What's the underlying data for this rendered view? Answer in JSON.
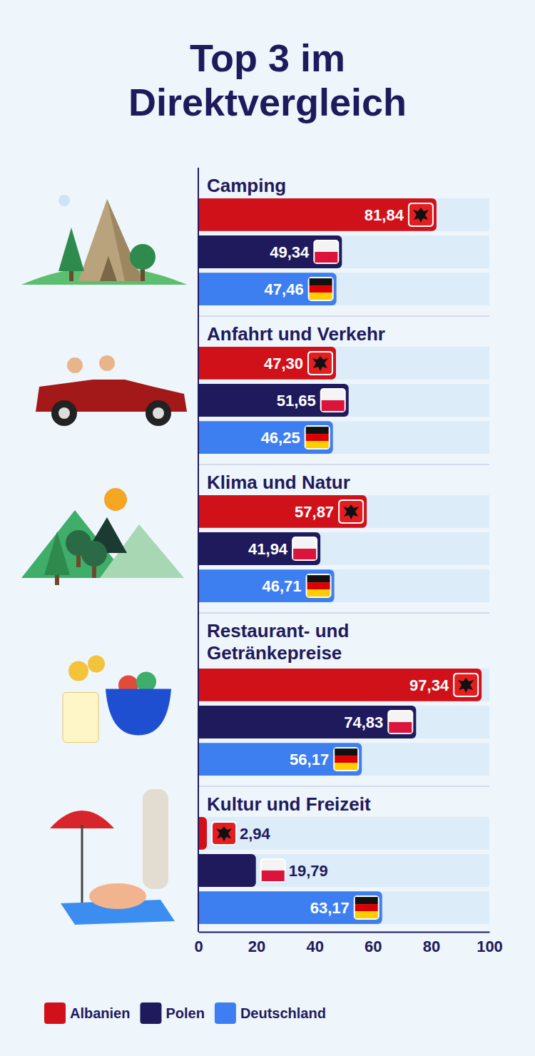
{
  "chart_data": {
    "type": "bar",
    "orientation": "horizontal",
    "title": "Top 3 im Direktvergleich",
    "categories": [
      "Camping",
      "Anfahrt und Verkehr",
      "Klima und Natur",
      "Restaurant- und Getränkepreise",
      "Kultur und Freizeit"
    ],
    "series": [
      {
        "name": "Albanien",
        "color": "#d1111a",
        "values": [
          81.84,
          47.3,
          57.87,
          97.34,
          2.94
        ],
        "value_labels": [
          "81,84",
          "47,30",
          "57,87",
          "97,34",
          "2,94"
        ]
      },
      {
        "name": "Polen",
        "color": "#1f1a5c",
        "values": [
          49.34,
          51.65,
          41.94,
          74.83,
          19.79
        ],
        "value_labels": [
          "49,34",
          "51,65",
          "41,94",
          "74,83",
          "19,79"
        ]
      },
      {
        "name": "Deutschland",
        "color": "#3d7ff0",
        "values": [
          47.46,
          46.25,
          46.71,
          56.17,
          63.17
        ],
        "value_labels": [
          "47,46",
          "46,25",
          "46,71",
          "56,17",
          "63,17"
        ]
      }
    ],
    "xlim": [
      0,
      100
    ],
    "xticks": [
      0,
      20,
      40,
      60,
      80,
      100
    ],
    "data_labels": true,
    "legend": "bottom-left",
    "grid": false
  }
}
